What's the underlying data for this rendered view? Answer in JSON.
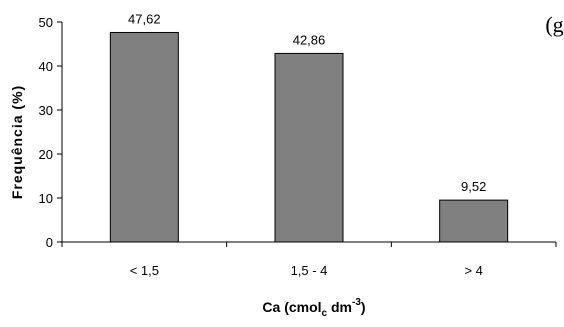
{
  "panel_label": "(g)",
  "chart_data": {
    "type": "bar",
    "categories": [
      "< 1,5",
      "1,5 - 4",
      "> 4"
    ],
    "values": [
      47.62,
      42.86,
      9.52
    ],
    "data_labels": [
      "47,62",
      "42,86",
      "9,52"
    ],
    "ylim": [
      0,
      50
    ],
    "yticks": [
      0,
      10,
      20,
      30,
      40,
      50
    ],
    "ylabel": "Frequência (%)",
    "xlabel": {
      "base": "Ca (cmol",
      "subscript": "c",
      "middle": " dm",
      "superscript": "-3",
      "end": ")"
    },
    "grid": false,
    "legend": "none",
    "bar_color": "#808080",
    "bar_edge_color": "#000000"
  }
}
